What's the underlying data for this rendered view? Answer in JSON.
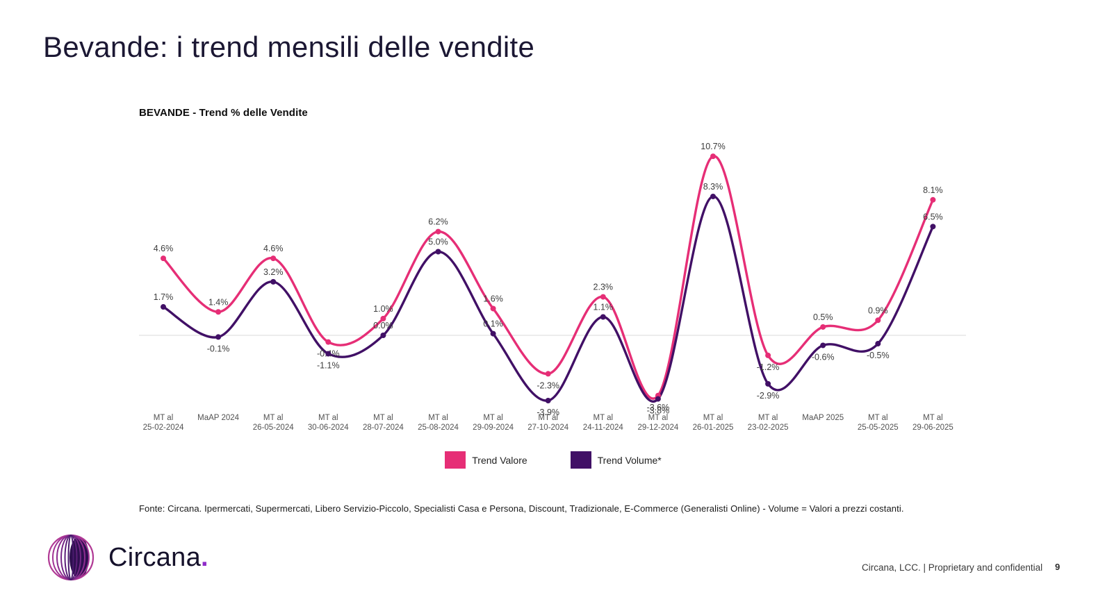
{
  "slide": {
    "title": "Bevande: i trend mensili delle vendite",
    "logo_text": "Circana",
    "logo_dot": ".",
    "source_note": "Fonte: Circana. Ipermercati, Supermercati, Libero Servizio-Piccolo, Specialisti Casa e Persona, Discount, Tradizionale, E-Commerce (Generalisti Online) - Volume = Valori a prezzi costanti.",
    "footer_right": "Circana, LCC. |  Proprietary and confidential",
    "page_number": "9"
  },
  "chart_data": {
    "type": "line",
    "title": "BEVANDE - Trend % delle Vendite",
    "categories": [
      {
        "l1": "MT al",
        "l2": "25-02-2024"
      },
      {
        "l1": "MaAP 2024",
        "l2": ""
      },
      {
        "l1": "MT al",
        "l2": "26-05-2024"
      },
      {
        "l1": "MT al",
        "l2": "30-06-2024"
      },
      {
        "l1": "MT al",
        "l2": "28-07-2024"
      },
      {
        "l1": "MT al",
        "l2": "25-08-2024"
      },
      {
        "l1": "MT al",
        "l2": "29-09-2024"
      },
      {
        "l1": "MT al",
        "l2": "27-10-2024"
      },
      {
        "l1": "MT al",
        "l2": "24-11-2024"
      },
      {
        "l1": "MT al",
        "l2": "29-12-2024"
      },
      {
        "l1": "MT al",
        "l2": "26-01-2025"
      },
      {
        "l1": "MT al",
        "l2": "23-02-2025"
      },
      {
        "l1": "MaAP 2025",
        "l2": ""
      },
      {
        "l1": "MT al",
        "l2": "25-05-2025"
      },
      {
        "l1": "MT al",
        "l2": "29-06-2025"
      }
    ],
    "series": [
      {
        "name": "Trend Valore",
        "color": "#E62E76",
        "values": [
          4.6,
          1.4,
          4.6,
          -0.4,
          1.0,
          6.2,
          1.6,
          -2.3,
          2.3,
          -3.6,
          10.7,
          -1.2,
          0.5,
          0.9,
          8.1
        ]
      },
      {
        "name": "Trend Volume*",
        "color": "#411066",
        "values": [
          1.7,
          -0.1,
          3.2,
          -1.1,
          0.0,
          5.0,
          0.1,
          -3.9,
          1.1,
          -3.8,
          8.3,
          -2.9,
          -0.6,
          -0.5,
          6.5
        ]
      }
    ],
    "label_format": "one-decimal-percent",
    "ylim": [
      -5.6,
      12.8
    ],
    "zero_line": true,
    "grid": "zero-line-only",
    "legend_position": "bottom-center"
  }
}
